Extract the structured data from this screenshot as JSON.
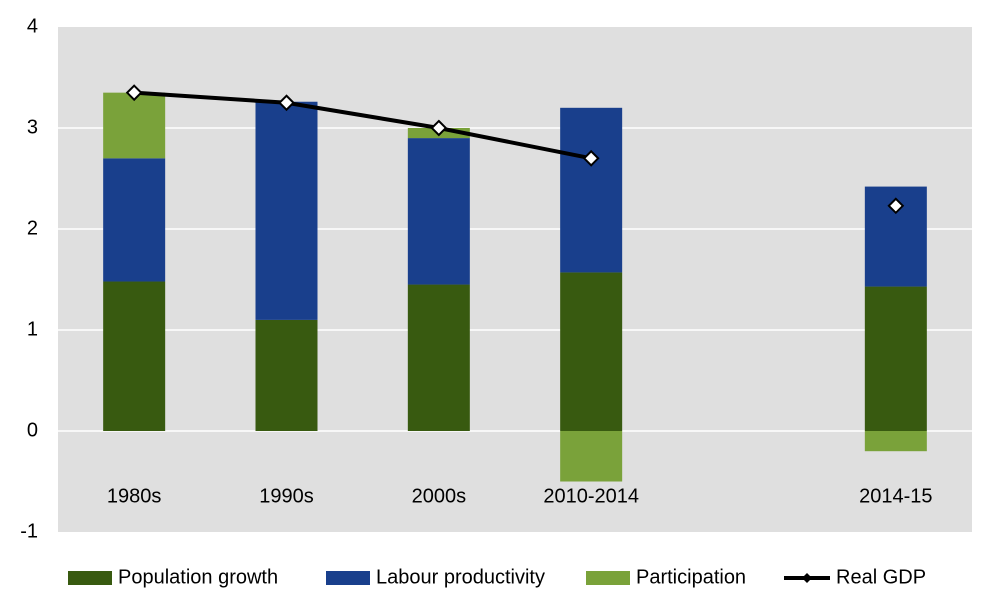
{
  "chart_data": {
    "type": "bar",
    "categories": [
      "1980s",
      "1990s",
      "2000s",
      "2010-2014",
      null,
      "2014-15"
    ],
    "series": [
      {
        "name": "Population growth",
        "color": "#385a10",
        "type": "bar",
        "values": [
          1.48,
          1.1,
          1.45,
          1.57,
          null,
          1.43
        ]
      },
      {
        "name": "Labour productivity",
        "color": "#193f8c",
        "type": "bar",
        "values": [
          1.22,
          2.16,
          1.45,
          1.63,
          null,
          0.99
        ]
      },
      {
        "name": "Participation",
        "color": "#7aa23a",
        "type": "bar",
        "values": [
          0.65,
          0,
          0.1,
          -0.5,
          null,
          -0.2
        ]
      },
      {
        "name": "Real GDP",
        "color": "#000000",
        "type": "line",
        "values": [
          3.35,
          3.25,
          3.0,
          2.7,
          null,
          2.23
        ]
      }
    ],
    "ylim": [
      -1,
      4
    ],
    "yticks": [
      -1,
      0,
      1,
      2,
      3,
      4
    ],
    "grid": true,
    "legend": "bottom",
    "stacked": true
  }
}
